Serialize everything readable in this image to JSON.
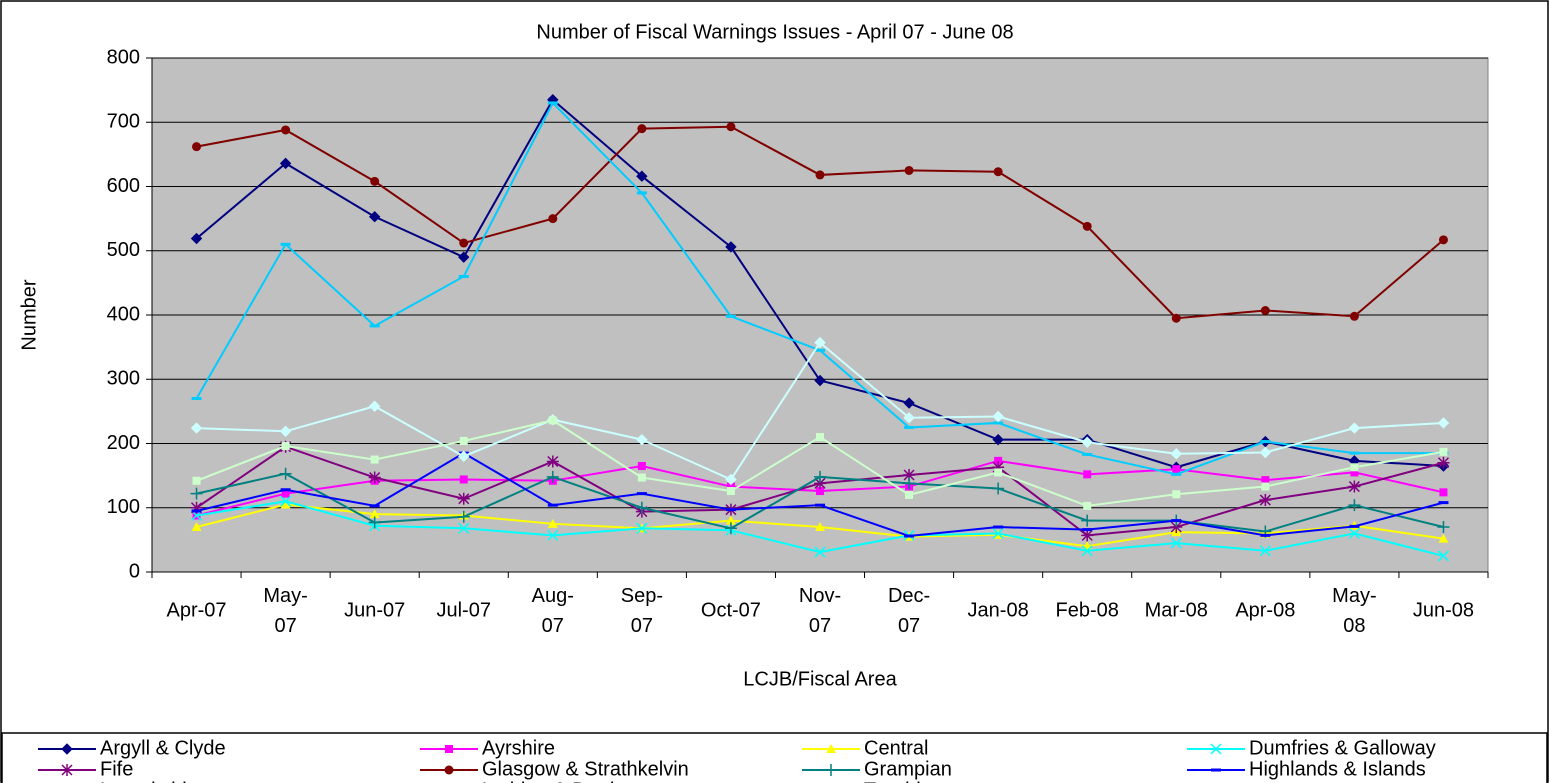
{
  "chart_data": {
    "type": "line",
    "title": "Number of Fiscal Warnings Issues - April 07 - June 08",
    "x_label": "LCJB/Fiscal Area",
    "y_label": "Number",
    "categories": [
      "Apr-07",
      "May-07",
      "Jun-07",
      "Jul-07",
      "Aug-07",
      "Sep-07",
      "Oct-07",
      "Nov-07",
      "Dec-07",
      "Jan-08",
      "Feb-08",
      "Mar-08",
      "Apr-08",
      "May-08",
      "Jun-08"
    ],
    "ylim": [
      0,
      800
    ],
    "yticks": [
      0,
      100,
      200,
      300,
      400,
      500,
      600,
      700,
      800
    ],
    "grid": true,
    "legend": "bottom",
    "series": [
      {
        "name": "Argyll & Clyde",
        "color": "#000080",
        "marker": "diamond",
        "values": [
          519,
          636,
          553,
          490,
          735,
          616,
          506,
          298,
          263,
          206,
          206,
          163,
          203,
          173,
          165
        ]
      },
      {
        "name": "Ayrshire",
        "color": "#ff00ff",
        "marker": "square",
        "values": [
          88,
          122,
          142,
          144,
          142,
          165,
          133,
          126,
          133,
          173,
          152,
          160,
          143,
          155,
          124
        ]
      },
      {
        "name": "Central",
        "color": "#ffff00",
        "marker": "triangle",
        "values": [
          70,
          105,
          90,
          88,
          75,
          68,
          80,
          70,
          55,
          58,
          40,
          62,
          60,
          72,
          52
        ]
      },
      {
        "name": "Dumfries & Galloway",
        "color": "#00ffff",
        "marker": "x",
        "values": [
          88,
          110,
          72,
          68,
          57,
          68,
          65,
          31,
          57,
          60,
          33,
          45,
          33,
          60,
          25
        ]
      },
      {
        "name": "Fife",
        "color": "#800080",
        "marker": "star",
        "values": [
          100,
          195,
          147,
          114,
          172,
          94,
          97,
          138,
          151,
          163,
          57,
          70,
          112,
          133,
          170
        ]
      },
      {
        "name": "Glasgow & Strathkelvin",
        "color": "#800000",
        "marker": "circle",
        "values": [
          662,
          688,
          608,
          512,
          550,
          690,
          693,
          618,
          625,
          623,
          538,
          395,
          407,
          398,
          517
        ]
      },
      {
        "name": "Grampian",
        "color": "#008080",
        "marker": "plus",
        "values": [
          122,
          153,
          77,
          86,
          148,
          100,
          68,
          148,
          138,
          130,
          80,
          80,
          63,
          104,
          70
        ]
      },
      {
        "name": "Highlands & Islands",
        "color": "#0000ff",
        "marker": "dash",
        "values": [
          95,
          128,
          103,
          185,
          104,
          122,
          97,
          104,
          56,
          70,
          66,
          80,
          57,
          71,
          108
        ]
      },
      {
        "name": "Lanarkshire",
        "color": "#00ccff",
        "marker": "dash",
        "values": [
          270,
          510,
          383,
          460,
          730,
          590,
          398,
          345,
          225,
          232,
          183,
          152,
          203,
          185,
          185
        ]
      },
      {
        "name": "Lothian & Borders",
        "color": "#ccffff",
        "marker": "diamond",
        "values": [
          224,
          219,
          258,
          180,
          237,
          206,
          144,
          357,
          240,
          242,
          202,
          184,
          186,
          224,
          232
        ]
      },
      {
        "name": "Tayside",
        "color": "#ccffcc",
        "marker": "square",
        "values": [
          142,
          196,
          175,
          204,
          236,
          147,
          126,
          210,
          120,
          155,
          103,
          121,
          133,
          163,
          187
        ]
      }
    ]
  }
}
